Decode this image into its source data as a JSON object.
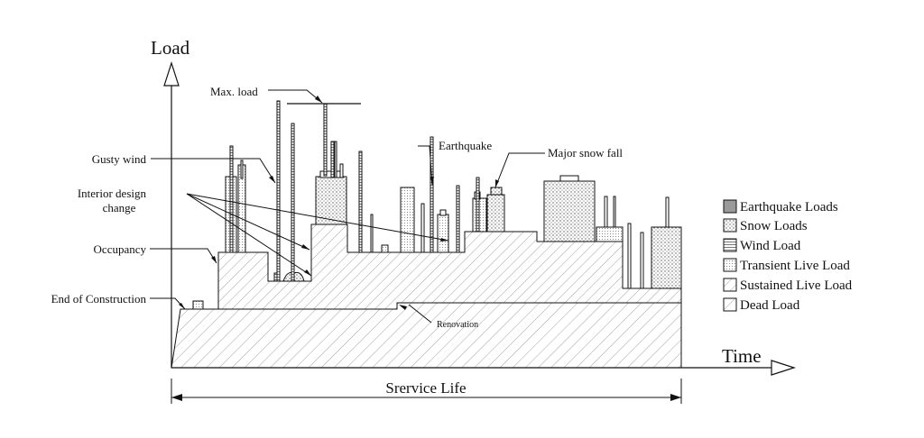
{
  "axes": {
    "y_label": "Load",
    "x_label": "Time",
    "span_label": "Srervice Life"
  },
  "annotations": {
    "max_load": "Max. load",
    "earthquake": "Earthquake",
    "major_snow_fall": "Major snow fall",
    "gusty_wind": "Gusty wind",
    "interior_design_line1": "Interior design",
    "interior_design_line2": "change",
    "occupancy": "Occupancy",
    "end_of_construction": "End of Construction",
    "renovation": "Renovation"
  },
  "legend": [
    {
      "label": "Earthquake Loads",
      "pattern": "solid-gray"
    },
    {
      "label": "Snow Loads",
      "pattern": "stipple"
    },
    {
      "label": "Wind Load",
      "pattern": "horizontal-lines"
    },
    {
      "label": "Transient Live Load",
      "pattern": "fine-dots"
    },
    {
      "label": "Sustained Live Load",
      "pattern": "diagonal-hatch"
    },
    {
      "label": "Dead Load",
      "pattern": "diagonal-hatch"
    }
  ],
  "colors": {
    "ink": "#111111",
    "earthquake_fill": "#9a9a9a",
    "hatch": "#777777"
  }
}
